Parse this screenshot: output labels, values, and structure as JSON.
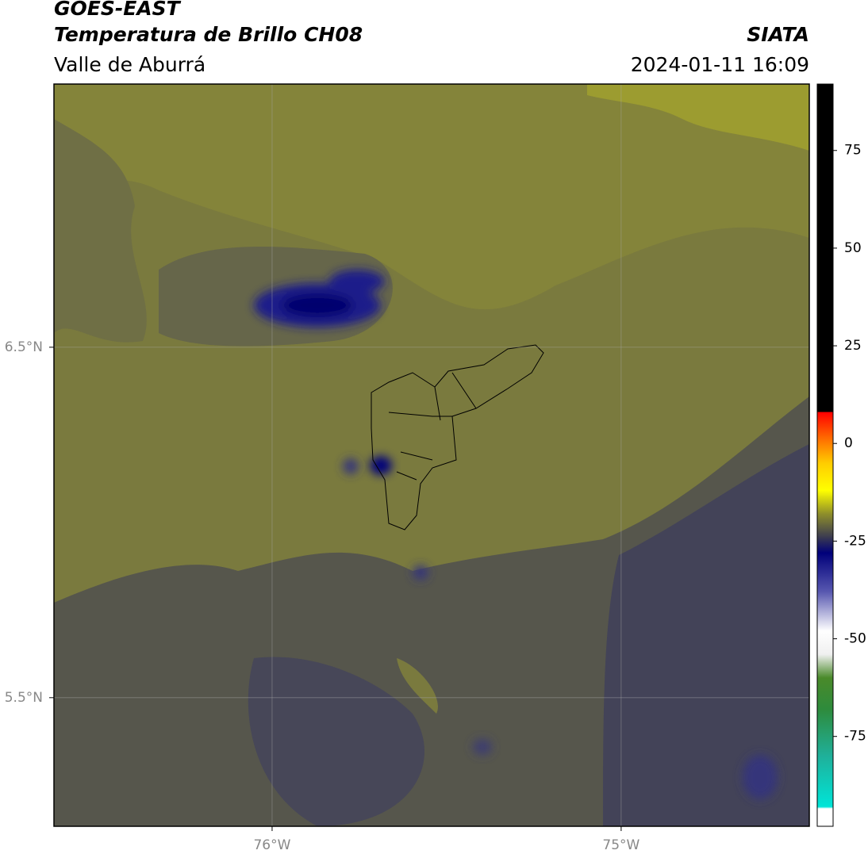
{
  "header": {
    "title": "GOES-EAST",
    "subtitle": "Temperatura de Brillo CH08",
    "region": "Valle de Aburrá",
    "source": "SIATA",
    "datetime": "2024-01-11 16:09"
  },
  "map": {
    "lonlim": [
      -76.625,
      -74.461
    ],
    "latlim": [
      5.133,
      7.251
    ],
    "lon_ticks": [
      {
        "value": -76,
        "label": "76°W"
      },
      {
        "value": -75,
        "label": "75°W"
      }
    ],
    "lat_ticks": [
      {
        "value": 6.5,
        "label": "6.5°N"
      },
      {
        "value": 5.5,
        "label": "5.5°N"
      }
    ],
    "grid": true
  },
  "colorbar": {
    "lim": [
      -98,
      92
    ],
    "ticks": [
      -75,
      -50,
      -25,
      0,
      25,
      50,
      75
    ],
    "stops": [
      {
        "value": -98,
        "color": "#ffffff"
      },
      {
        "value": -93.5,
        "color": "#ffffff"
      },
      {
        "value": -93,
        "color": "#00e5d8"
      },
      {
        "value": -80,
        "color": "#1fb09a"
      },
      {
        "value": -68,
        "color": "#2e8b3c"
      },
      {
        "value": -60,
        "color": "#4a8a2a"
      },
      {
        "value": -54,
        "color": "#f0f0f0"
      },
      {
        "value": -48,
        "color": "#ffffff"
      },
      {
        "value": -38,
        "color": "#5858b0"
      },
      {
        "value": -28,
        "color": "#00007a"
      },
      {
        "value": -24,
        "color": "#3a3a50"
      },
      {
        "value": -18,
        "color": "#8f8f2a"
      },
      {
        "value": -12,
        "color": "#ffff00"
      },
      {
        "value": -5,
        "color": "#ffcc00"
      },
      {
        "value": 0,
        "color": "#ff8000"
      },
      {
        "value": 8,
        "color": "#ff0000"
      },
      {
        "value": 8.1,
        "color": "#000000"
      },
      {
        "value": 92,
        "color": "#000000"
      }
    ]
  }
}
